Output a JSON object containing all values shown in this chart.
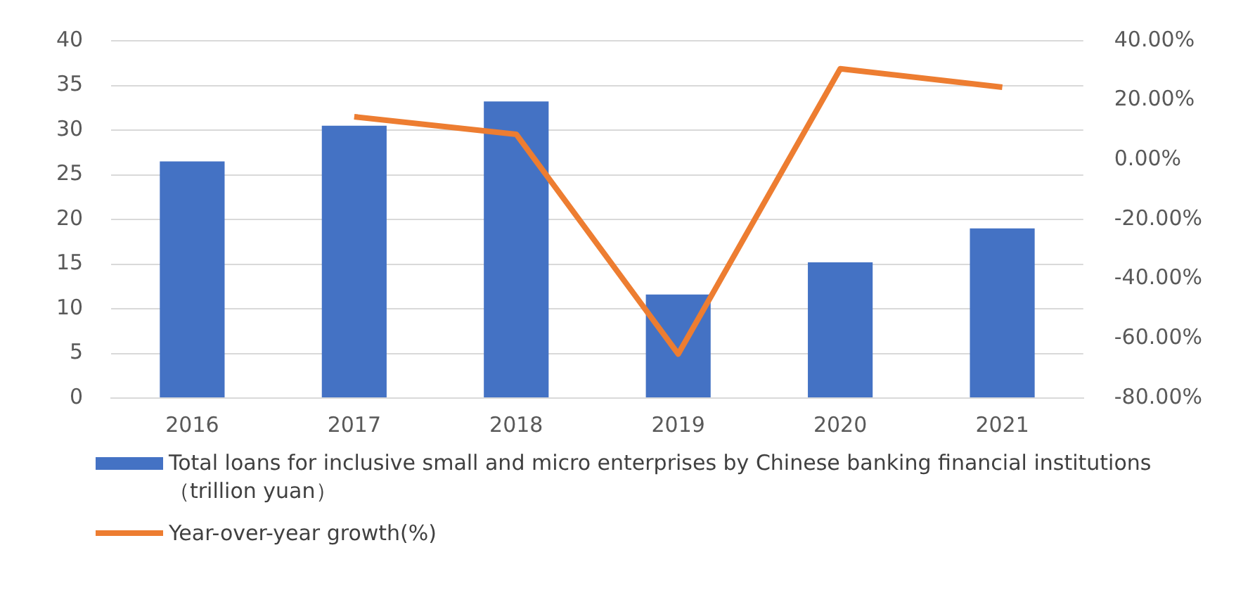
{
  "chart_data": {
    "type": "bar",
    "categories": [
      "2016",
      "2017",
      "2018",
      "2019",
      "2020",
      "2021"
    ],
    "series": [
      {
        "name": "Total loans for inclusive small and micro enterprises by Chinese banking financial institutions （trillion yuan）",
        "color": "#4472c4",
        "values": [
          26.5,
          30.5,
          33.2,
          11.6,
          15.2,
          19.0
        ]
      },
      {
        "name": "Year-over-year growth(%)",
        "type": "line",
        "axis": "y2",
        "color": "#ed7d31",
        "values": [
          null,
          14.5,
          8.6,
          -65.2,
          30.6,
          24.4
        ]
      }
    ],
    "ylim": [
      0,
      40
    ],
    "yticks": [
      0,
      5,
      10,
      15,
      20,
      25,
      30,
      35,
      40
    ],
    "y2lim": [
      -80,
      40
    ],
    "y2ticks": [
      {
        "value": -80,
        "label": "-80.00%"
      },
      {
        "value": -60,
        "label": "-60.00%"
      },
      {
        "value": -40,
        "label": "-40.00%"
      },
      {
        "value": -20,
        "label": "-20.00%"
      },
      {
        "value": 0,
        "label": "0.00%"
      },
      {
        "value": 20,
        "label": "20.00%"
      },
      {
        "value": 40,
        "label": "40.00%"
      }
    ],
    "grid": "y",
    "legend": "bottom",
    "marker": "none"
  }
}
